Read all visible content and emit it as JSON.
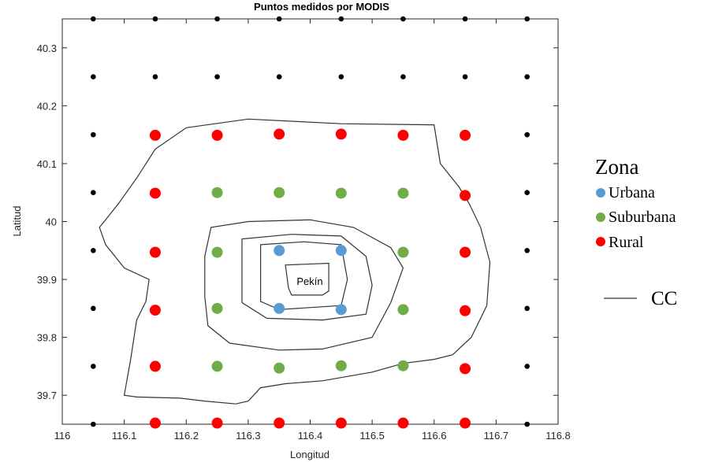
{
  "chart_data": {
    "type": "scatter",
    "title": "Puntos medidos por MODIS",
    "xlabel": "Longitud",
    "ylabel": "Latitud",
    "xlim": [
      116.0,
      116.8
    ],
    "ylim": [
      39.65,
      40.35
    ],
    "xticks": [
      116,
      116.1,
      116.2,
      116.3,
      116.4,
      116.5,
      116.6,
      116.7,
      116.8
    ],
    "xtick_labels": [
      "116",
      "116.1",
      "116.2",
      "116.3",
      "116.4",
      "116.5",
      "116.6",
      "116.7",
      "116.8"
    ],
    "yticks": [
      39.7,
      39.8,
      39.9,
      40.0,
      40.1,
      40.2,
      40.3
    ],
    "ytick_labels": [
      "39.7",
      "39.8",
      "39.9",
      "40",
      "40.1",
      "40.2",
      "40.3"
    ],
    "grid": false,
    "legend_title": "Zona",
    "legend_placement": "right",
    "annotation": "Pekín",
    "series": [
      {
        "name": "",
        "color": "#000000",
        "marker": "small-dot",
        "points": [
          [
            116.05,
            40.35
          ],
          [
            116.15,
            40.35
          ],
          [
            116.25,
            40.35
          ],
          [
            116.35,
            40.35
          ],
          [
            116.45,
            40.35
          ],
          [
            116.55,
            40.35
          ],
          [
            116.65,
            40.35
          ],
          [
            116.75,
            40.35
          ],
          [
            116.05,
            40.25
          ],
          [
            116.15,
            40.25
          ],
          [
            116.25,
            40.25
          ],
          [
            116.35,
            40.25
          ],
          [
            116.45,
            40.25
          ],
          [
            116.55,
            40.25
          ],
          [
            116.65,
            40.25
          ],
          [
            116.75,
            40.25
          ],
          [
            116.05,
            40.15
          ],
          [
            116.75,
            40.15
          ],
          [
            116.05,
            40.05
          ],
          [
            116.75,
            40.05
          ],
          [
            116.05,
            39.95
          ],
          [
            116.75,
            39.95
          ],
          [
            116.05,
            39.85
          ],
          [
            116.75,
            39.85
          ],
          [
            116.05,
            39.75
          ],
          [
            116.75,
            39.75
          ],
          [
            116.05,
            39.65
          ],
          [
            116.75,
            39.65
          ]
        ]
      },
      {
        "name": "Urbana",
        "color": "#5b9bd5",
        "marker": "dot",
        "points": [
          [
            116.35,
            39.95
          ],
          [
            116.45,
            39.95
          ],
          [
            116.35,
            39.85
          ],
          [
            116.45,
            39.848
          ]
        ]
      },
      {
        "name": "Suburbana",
        "color": "#70ad47",
        "marker": "dot",
        "points": [
          [
            116.25,
            40.05
          ],
          [
            116.35,
            40.05
          ],
          [
            116.45,
            40.049
          ],
          [
            116.55,
            40.049
          ],
          [
            116.25,
            39.947
          ],
          [
            116.55,
            39.947
          ],
          [
            116.25,
            39.85
          ],
          [
            116.55,
            39.848
          ],
          [
            116.25,
            39.75
          ],
          [
            116.35,
            39.747
          ],
          [
            116.45,
            39.751
          ],
          [
            116.55,
            39.751
          ]
        ]
      },
      {
        "name": "Rural",
        "color": "#ff0000",
        "marker": "dot",
        "points": [
          [
            116.15,
            40.149
          ],
          [
            116.25,
            40.149
          ],
          [
            116.35,
            40.151
          ],
          [
            116.45,
            40.151
          ],
          [
            116.55,
            40.149
          ],
          [
            116.65,
            40.149
          ],
          [
            116.15,
            40.049
          ],
          [
            116.65,
            40.045
          ],
          [
            116.15,
            39.947
          ],
          [
            116.65,
            39.947
          ],
          [
            116.15,
            39.847
          ],
          [
            116.65,
            39.846
          ],
          [
            116.15,
            39.75
          ],
          [
            116.65,
            39.746
          ],
          [
            116.15,
            39.652
          ],
          [
            116.25,
            39.652
          ],
          [
            116.35,
            39.652
          ],
          [
            116.45,
            39.652
          ],
          [
            116.55,
            39.652
          ],
          [
            116.65,
            39.652
          ]
        ]
      },
      {
        "name": "CC",
        "type": "line",
        "color": "#333333",
        "closed": true,
        "lines": [
          [
            [
              116.2,
              40.162
            ],
            [
              116.3,
              40.177
            ],
            [
              116.45,
              40.169
            ],
            [
              116.6,
              40.167
            ],
            [
              116.61,
              40.1
            ],
            [
              116.64,
              40.06
            ],
            [
              116.657,
              40.03
            ],
            [
              116.675,
              39.99
            ],
            [
              116.69,
              39.93
            ],
            [
              116.685,
              39.855
            ],
            [
              116.66,
              39.8
            ],
            [
              116.63,
              39.77
            ],
            [
              116.6,
              39.762
            ],
            [
              116.55,
              39.755
            ],
            [
              116.5,
              39.74
            ],
            [
              116.42,
              39.725
            ],
            [
              116.36,
              39.72
            ],
            [
              116.32,
              39.713
            ],
            [
              116.3,
              39.69
            ],
            [
              116.28,
              39.685
            ],
            [
              116.23,
              39.69
            ],
            [
              116.19,
              39.695
            ],
            [
              116.12,
              39.697
            ],
            [
              116.1,
              39.7
            ],
            [
              116.11,
              39.76
            ],
            [
              116.12,
              39.83
            ],
            [
              116.135,
              39.862
            ],
            [
              116.14,
              39.9
            ],
            [
              116.1,
              39.92
            ],
            [
              116.07,
              39.96
            ],
            [
              116.06,
              39.99
            ],
            [
              116.09,
              40.03
            ],
            [
              116.12,
              40.075
            ],
            [
              116.15,
              40.125
            ],
            [
              116.2,
              40.162
            ]
          ],
          [
            [
              116.23,
              39.94
            ],
            [
              116.24,
              39.99
            ],
            [
              116.3,
              40.0
            ],
            [
              116.4,
              40.003
            ],
            [
              116.47,
              39.99
            ],
            [
              116.53,
              39.955
            ],
            [
              116.55,
              39.92
            ],
            [
              116.53,
              39.86
            ],
            [
              116.5,
              39.8
            ],
            [
              116.42,
              39.78
            ],
            [
              116.35,
              39.778
            ],
            [
              116.27,
              39.79
            ],
            [
              116.235,
              39.82
            ],
            [
              116.23,
              39.87
            ],
            [
              116.23,
              39.94
            ]
          ],
          [
            [
              116.29,
              39.97
            ],
            [
              116.37,
              39.978
            ],
            [
              116.45,
              39.975
            ],
            [
              116.49,
              39.94
            ],
            [
              116.5,
              39.89
            ],
            [
              116.49,
              39.84
            ],
            [
              116.42,
              39.83
            ],
            [
              116.33,
              39.833
            ],
            [
              116.29,
              39.86
            ],
            [
              116.29,
              39.97
            ]
          ],
          [
            [
              116.32,
              39.96
            ],
            [
              116.39,
              39.965
            ],
            [
              116.45,
              39.96
            ],
            [
              116.46,
              39.9
            ],
            [
              116.45,
              39.855
            ],
            [
              116.35,
              39.848
            ],
            [
              116.32,
              39.862
            ],
            [
              116.32,
              39.96
            ]
          ],
          [
            [
              116.36,
              39.925
            ],
            [
              116.43,
              39.928
            ],
            [
              116.43,
              39.88
            ],
            [
              116.42,
              39.873
            ],
            [
              116.37,
              39.873
            ],
            [
              116.365,
              39.885
            ],
            [
              116.36,
              39.925
            ]
          ]
        ]
      }
    ]
  }
}
